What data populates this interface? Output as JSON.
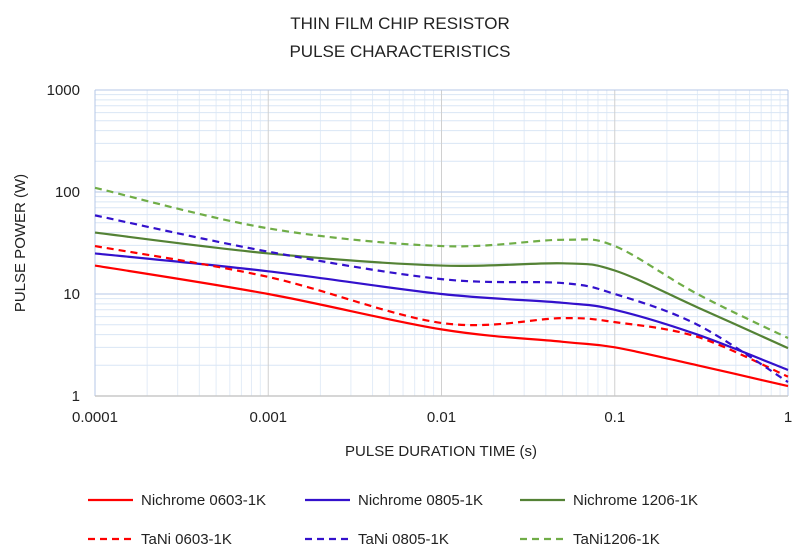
{
  "chart_data": {
    "type": "line",
    "title": [
      "THIN FILM CHIP RESISTOR",
      "PULSE CHARACTERISTICS"
    ],
    "xlabel": "PULSE DURATION TIME (s)",
    "ylabel": "PULSE POWER (W)",
    "xscale": "log",
    "yscale": "log",
    "xlim": [
      0.0001,
      1
    ],
    "ylim": [
      1,
      1000
    ],
    "xticks": [
      "0.0001",
      "0.001",
      "0.01",
      "0.1",
      "1"
    ],
    "yticks": [
      "1",
      "10",
      "100",
      "1000"
    ],
    "grid": true,
    "legend_position": "bottom",
    "x": [
      0.0001,
      0.001,
      0.01,
      0.05,
      0.1,
      0.3,
      1
    ],
    "series": [
      {
        "name": "Nichrome 0603-1K",
        "color": "#ff0000",
        "dash": false,
        "values": [
          19,
          10,
          4.5,
          3.4,
          3.0,
          2.0,
          1.25
        ]
      },
      {
        "name": "Nichrome 0805-1K",
        "color": "#3311cc",
        "dash": false,
        "values": [
          25,
          16.7,
          10,
          8.2,
          7,
          4,
          1.8
        ]
      },
      {
        "name": "Nichrome 1206-1K",
        "color": "#548235",
        "dash": false,
        "values": [
          40,
          25,
          19,
          20,
          17,
          7.4,
          2.95
        ]
      },
      {
        "name": "TaNi 0603-1K",
        "color": "#ff0000",
        "dash": true,
        "values": [
          29.5,
          14.7,
          5.2,
          5.8,
          5.3,
          3.8,
          1.55
        ]
      },
      {
        "name": "TaNi 0805-1K",
        "color": "#3311cc",
        "dash": true,
        "values": [
          59,
          26,
          14,
          12.8,
          10,
          5,
          1.37
        ]
      },
      {
        "name": "TaNi1206-1K",
        "color": "#70ad47",
        "dash": true,
        "values": [
          110,
          44,
          29.5,
          34,
          29.5,
          10,
          3.7
        ]
      }
    ]
  }
}
